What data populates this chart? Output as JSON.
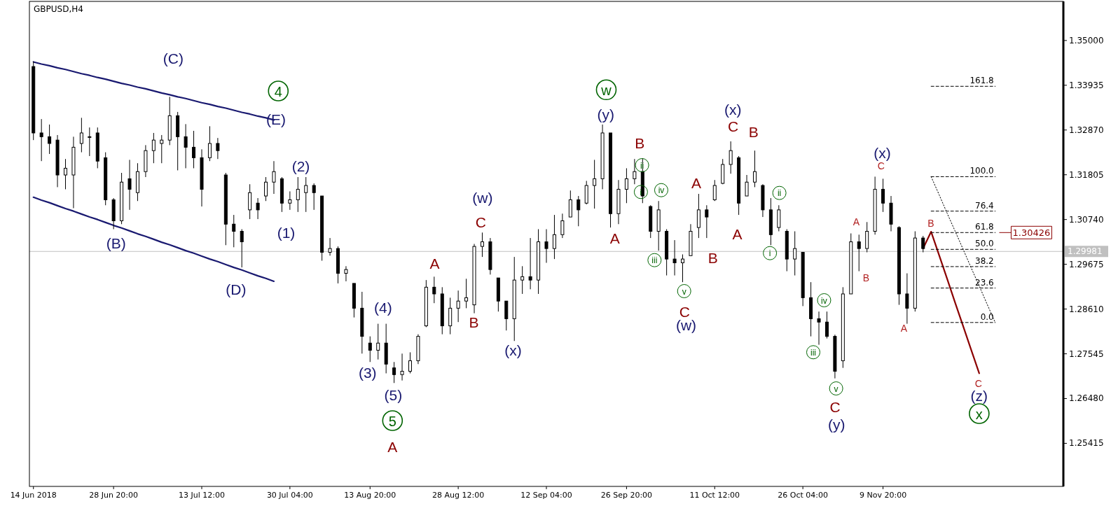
{
  "chart_data": {
    "type": "candlestick",
    "title": "GBPUSD,H4",
    "color": "#000000",
    "categories": [
      "14 Jun 2018",
      null,
      null,
      null,
      null,
      null,
      null,
      null,
      null,
      null,
      "28 Jun 20:00",
      null,
      null,
      null,
      null,
      null,
      null,
      null,
      null,
      null,
      null,
      "13 Jul 12:00",
      null,
      null,
      null,
      null,
      null,
      null,
      null,
      null,
      null,
      null,
      "30 Jul 04:00",
      null,
      null,
      null,
      null,
      null,
      null,
      null,
      null,
      null,
      "13 Aug 20:00",
      null,
      null,
      null,
      null,
      null,
      null,
      null,
      null,
      null,
      null,
      "28 Aug 12:00",
      null,
      null,
      null,
      null,
      null,
      null,
      null,
      null,
      null,
      null,
      "12 Sep 04:00",
      null,
      null,
      null,
      null,
      null,
      null,
      null,
      null,
      null,
      "26 Sep 20:00",
      null,
      null,
      null,
      null,
      null,
      null,
      null,
      null,
      null,
      null,
      "11 Oct 12:00",
      null,
      null,
      null,
      null,
      null,
      null,
      null,
      null,
      null,
      null,
      "26 Oct 04:00",
      null,
      null,
      null,
      null,
      null,
      null,
      null,
      null,
      null,
      "9 Nov 20:00",
      null,
      null,
      null,
      null,
      null,
      null,
      null,
      null,
      null,
      null,
      null,
      null,
      null,
      null,
      null,
      null,
      null,
      null,
      null,
      null,
      null,
      null
    ],
    "ohlc": [
      [
        1.3438,
        1.345,
        1.3263,
        1.328
      ],
      [
        1.328,
        1.3313,
        1.3213,
        1.3271
      ],
      [
        1.3271,
        1.33,
        1.323,
        1.3255
      ],
      [
        1.3263,
        1.3275,
        1.3151,
        1.318
      ],
      [
        1.318,
        1.3218,
        1.3146,
        1.3196
      ],
      [
        1.318,
        1.3271,
        1.3101,
        1.3246
      ],
      [
        1.3255,
        1.3316,
        1.3234,
        1.328
      ],
      [
        1.3271,
        1.3293,
        1.3225,
        1.3271
      ],
      [
        1.328,
        1.3293,
        1.3196,
        1.3213
      ],
      [
        1.3221,
        1.3234,
        1.3108,
        1.3121
      ],
      [
        1.3121,
        1.3125,
        1.3051,
        1.3071
      ],
      [
        1.3071,
        1.3185,
        1.3063,
        1.3163
      ],
      [
        1.3171,
        1.3216,
        1.3097,
        1.3146
      ],
      [
        1.3138,
        1.3208,
        1.3118,
        1.3188
      ],
      [
        1.3188,
        1.3251,
        1.3175,
        1.3238
      ],
      [
        1.3238,
        1.328,
        1.3208,
        1.3263
      ],
      [
        1.3255,
        1.3275,
        1.3208,
        1.3263
      ],
      [
        1.3263,
        1.3366,
        1.3251,
        1.3321
      ],
      [
        1.3321,
        1.333,
        1.3191,
        1.3271
      ],
      [
        1.3271,
        1.3301,
        1.3196,
        1.3246
      ],
      [
        1.3246,
        1.3285,
        1.3196,
        1.3221
      ],
      [
        1.3221,
        1.3241,
        1.3105,
        1.3146
      ],
      [
        1.3221,
        1.3296,
        1.3213,
        1.3255
      ],
      [
        1.3255,
        1.3268,
        1.3218,
        1.3238
      ],
      [
        1.318,
        1.3185,
        1.3013,
        1.3063
      ],
      [
        1.3063,
        1.3085,
        1.3008,
        1.3046
      ],
      [
        1.3046,
        1.3051,
        1.296,
        1.3021
      ],
      [
        1.3097,
        1.3158,
        1.3075,
        1.3138
      ],
      [
        1.3113,
        1.3125,
        1.3075,
        1.3097
      ],
      [
        1.313,
        1.3175,
        1.3118,
        1.3163
      ],
      [
        1.3163,
        1.3213,
        1.3135,
        1.3188
      ],
      [
        1.3171,
        1.3175,
        1.3092,
        1.3113
      ],
      [
        1.3113,
        1.3141,
        1.3097,
        1.3121
      ],
      [
        1.3121,
        1.3175,
        1.3092,
        1.3146
      ],
      [
        1.3138,
        1.3175,
        1.3092,
        1.3155
      ],
      [
        1.3155,
        1.316,
        1.3097,
        1.3138
      ],
      [
        1.313,
        1.313,
        1.2976,
        1.2996
      ],
      [
        1.2996,
        1.303,
        1.2988,
        1.3005
      ],
      [
        1.3005,
        1.301,
        1.2922,
        1.2946
      ],
      [
        1.2946,
        1.2963,
        1.2927,
        1.2955
      ],
      [
        1.2922,
        1.2922,
        1.2841,
        1.2863
      ],
      [
        1.2863,
        1.2902,
        1.2755,
        1.2796
      ],
      [
        1.278,
        1.2796,
        1.2735,
        1.2763
      ],
      [
        1.2763,
        1.2826,
        1.2741,
        1.278
      ],
      [
        1.278,
        1.2826,
        1.2708,
        1.273
      ],
      [
        1.2721,
        1.2735,
        1.2685,
        1.2705
      ],
      [
        1.2705,
        1.2755,
        1.2691,
        1.2713
      ],
      [
        1.2713,
        1.2758,
        1.2708,
        1.2738
      ],
      [
        1.2738,
        1.2801,
        1.273,
        1.2796
      ],
      [
        1.2821,
        1.293,
        1.2818,
        1.2913
      ],
      [
        1.2913,
        1.2938,
        1.2875,
        1.2897
      ],
      [
        1.2897,
        1.2913,
        1.2801,
        1.2821
      ],
      [
        1.2821,
        1.2888,
        1.2801,
        1.2863
      ],
      [
        1.2863,
        1.2905,
        1.283,
        1.288
      ],
      [
        1.288,
        1.2933,
        1.2863,
        1.2888
      ],
      [
        1.2871,
        1.3016,
        1.2851,
        1.301
      ],
      [
        1.301,
        1.3043,
        1.2985,
        1.3021
      ],
      [
        1.3021,
        1.303,
        1.2943,
        1.2955
      ],
      [
        1.2935,
        1.2935,
        1.2855,
        1.288
      ],
      [
        1.288,
        1.288,
        1.281,
        1.2838
      ],
      [
        1.2838,
        1.2985,
        1.2785,
        1.293
      ],
      [
        1.293,
        1.2963,
        1.2897,
        1.2938
      ],
      [
        1.2938,
        1.303,
        1.2908,
        1.293
      ],
      [
        1.293,
        1.3051,
        1.2897,
        1.3021
      ],
      [
        1.3021,
        1.3051,
        1.2971,
        1.3005
      ],
      [
        1.3005,
        1.3085,
        1.298,
        1.3038
      ],
      [
        1.3038,
        1.3088,
        1.303,
        1.3071
      ],
      [
        1.308,
        1.3143,
        1.308,
        1.3121
      ],
      [
        1.3121,
        1.313,
        1.3058,
        1.3097
      ],
      [
        1.3113,
        1.3166,
        1.311,
        1.3155
      ],
      [
        1.3155,
        1.3216,
        1.31,
        1.3171
      ],
      [
        1.3171,
        1.33,
        1.3146,
        1.328
      ],
      [
        1.328,
        1.328,
        1.3055,
        1.3088
      ],
      [
        1.3088,
        1.3168,
        1.3063,
        1.3146
      ],
      [
        1.3146,
        1.3196,
        1.3113,
        1.3171
      ],
      [
        1.3171,
        1.3218,
        1.3158,
        1.3188
      ],
      [
        1.3188,
        1.322,
        1.3113,
        1.313
      ],
      [
        1.3105,
        1.3108,
        1.303,
        1.3046
      ],
      [
        1.3046,
        1.3118,
        1.3,
        1.3097
      ],
      [
        1.3046,
        1.3051,
        1.2941,
        1.298
      ],
      [
        1.298,
        1.3025,
        1.2941,
        1.2971
      ],
      [
        1.2971,
        1.2991,
        1.2925,
        1.298
      ],
      [
        1.2988,
        1.3063,
        1.2988,
        1.3046
      ],
      [
        1.3055,
        1.3135,
        1.303,
        1.3097
      ],
      [
        1.3097,
        1.3108,
        1.303,
        1.308
      ],
      [
        1.3121,
        1.3168,
        1.3118,
        1.3155
      ],
      [
        1.316,
        1.3218,
        1.3158,
        1.3205
      ],
      [
        1.3205,
        1.326,
        1.3183,
        1.3238
      ],
      [
        1.3221,
        1.3225,
        1.3085,
        1.3113
      ],
      [
        1.313,
        1.318,
        1.313,
        1.3163
      ],
      [
        1.3163,
        1.3238,
        1.3151,
        1.3188
      ],
      [
        1.3155,
        1.3158,
        1.308,
        1.3097
      ],
      [
        1.3097,
        1.3125,
        1.3013,
        1.3038
      ],
      [
        1.3055,
        1.3108,
        1.3046,
        1.3097
      ],
      [
        1.3046,
        1.3051,
        1.2951,
        1.298
      ],
      [
        1.298,
        1.3046,
        1.2941,
        1.3005
      ],
      [
        1.2996,
        1.2996,
        1.2868,
        1.2888
      ],
      [
        1.2888,
        1.2925,
        1.2796,
        1.2838
      ],
      [
        1.2838,
        1.2855,
        1.2776,
        1.283
      ],
      [
        1.283,
        1.2855,
        1.2791,
        1.2796
      ],
      [
        1.2796,
        1.28,
        1.2696,
        1.2713
      ],
      [
        1.2738,
        1.2913,
        1.2721,
        1.2897
      ],
      [
        1.2897,
        1.3041,
        1.2897,
        1.3021
      ],
      [
        1.3021,
        1.3038,
        1.2951,
        1.3005
      ],
      [
        1.3005,
        1.3068,
        1.2996,
        1.3046
      ],
      [
        1.3046,
        1.3176,
        1.3038,
        1.3146
      ],
      [
        1.3146,
        1.3171,
        1.3092,
        1.3113
      ],
      [
        1.3113,
        1.313,
        1.3046,
        1.3063
      ],
      [
        1.3055,
        1.3058,
        1.2871,
        1.2897
      ],
      [
        1.2897,
        1.2946,
        1.2826,
        1.2863
      ],
      [
        1.2863,
        1.3046,
        1.2855,
        1.303
      ],
      [
        1.303,
        1.3035,
        1.2996,
        1.3005
      ],
      null,
      null,
      null,
      null,
      null,
      null,
      null,
      null,
      null,
      null,
      null,
      null,
      null,
      null,
      null,
      null,
      null
    ],
    "ylim": [
      1.2439,
      1.3593
    ],
    "yticks": [
      {
        "value": 1.35,
        "label": "1.35000"
      },
      1.33935,
      {
        "value": 1.3287,
        "label": "1.32870"
      },
      1.31805,
      {
        "value": 1.3074,
        "label": "1.30740"
      },
      1.29675,
      {
        "value": 1.2861,
        "label": "1.28610"
      },
      1.27545,
      {
        "value": 1.2648,
        "label": "1.26480"
      },
      1.25415
    ],
    "series": [
      {
        "type": "line",
        "color": "#191970",
        "line_style": "solid",
        "values": [
          1.3449,
          1.3444,
          1.344,
          1.3435,
          1.3431,
          1.3426,
          1.3421,
          1.3417,
          1.3412,
          1.3408,
          1.3403,
          1.3398,
          1.3394,
          1.3389,
          1.3385,
          1.338,
          1.3375,
          1.3371,
          1.3366,
          1.3362,
          1.3357,
          1.3352,
          1.3348,
          1.3343,
          1.3339,
          1.3334,
          1.3329,
          1.3325,
          1.332,
          1.3316,
          1.3311,
          null,
          null,
          null,
          null,
          null,
          null,
          null,
          null,
          null,
          null,
          null,
          null,
          null,
          null,
          null,
          null,
          null,
          null,
          null,
          null,
          null,
          null,
          null,
          null,
          null,
          null,
          null,
          null,
          null,
          null,
          null,
          null,
          null,
          null,
          null,
          null,
          null,
          null,
          null,
          null,
          null,
          null,
          null,
          null,
          null,
          null,
          null,
          null,
          null,
          null,
          null,
          null,
          null,
          null,
          null,
          null,
          null,
          null,
          null,
          null,
          null,
          null,
          null,
          null,
          null,
          null,
          null,
          null,
          null,
          null,
          null,
          null,
          null,
          null,
          null,
          null,
          null,
          null,
          null,
          null,
          null,
          null,
          null,
          null,
          null,
          null,
          null,
          null,
          null,
          null,
          null,
          null,
          null,
          null,
          null,
          null,
          null,
          null
        ]
      },
      {
        "type": "line",
        "color": "#191970",
        "line_style": "solid",
        "values": [
          1.3127,
          1.312,
          1.3114,
          1.3107,
          1.31,
          1.3094,
          1.3087,
          1.308,
          1.3074,
          1.3067,
          1.306,
          1.3054,
          1.3047,
          1.304,
          1.3034,
          1.3027,
          1.302,
          1.3014,
          1.3007,
          1.3,
          1.2994,
          1.2987,
          1.298,
          1.2974,
          1.2967,
          1.296,
          1.2954,
          1.2947,
          1.294,
          1.2934,
          1.2927,
          null,
          null,
          null,
          null,
          null,
          null,
          null,
          null,
          null,
          null,
          null,
          null,
          null,
          null,
          null,
          null,
          null,
          null,
          null,
          null,
          null,
          null,
          null,
          null,
          null,
          null,
          null,
          null,
          null,
          null,
          null,
          null,
          null,
          null,
          null,
          null,
          null,
          null,
          null,
          null,
          null,
          null,
          null,
          null,
          null,
          null,
          null,
          null,
          null,
          null,
          null,
          null,
          null,
          null,
          null,
          null,
          null,
          null,
          null,
          null,
          null,
          null,
          null,
          null,
          null,
          null,
          null,
          null,
          null,
          null,
          null,
          null,
          null,
          null,
          null,
          null,
          null,
          null,
          null,
          null,
          null,
          null,
          null,
          null,
          null,
          null,
          null,
          null,
          null,
          null,
          null,
          null,
          null,
          null,
          null,
          null,
          null,
          null
        ]
      },
      {
        "type": "line",
        "color": "#8b0000",
        "line_style": "solid",
        "values": [
          null,
          null,
          null,
          null,
          null,
          null,
          null,
          null,
          null,
          null,
          null,
          null,
          null,
          null,
          null,
          null,
          null,
          null,
          null,
          null,
          null,
          null,
          null,
          null,
          null,
          null,
          null,
          null,
          null,
          null,
          null,
          null,
          null,
          null,
          null,
          null,
          null,
          null,
          null,
          null,
          null,
          null,
          null,
          null,
          null,
          null,
          null,
          null,
          null,
          null,
          null,
          null,
          null,
          null,
          null,
          null,
          null,
          null,
          null,
          null,
          null,
          null,
          null,
          null,
          null,
          null,
          null,
          null,
          null,
          null,
          null,
          null,
          null,
          null,
          null,
          null,
          null,
          null,
          null,
          null,
          null,
          null,
          null,
          null,
          null,
          null,
          null,
          null,
          null,
          null,
          null,
          null,
          null,
          null,
          null,
          null,
          null,
          null,
          null,
          null,
          null,
          null,
          null,
          null,
          null,
          null,
          null,
          null,
          null,
          null,
          null,
          1.3005,
          1.3045,
          1.2989,
          1.2933,
          1.2876,
          1.282,
          1.2764,
          1.2708,
          null,
          null,
          null,
          null,
          null,
          null,
          null,
          null,
          null,
          null
        ]
      },
      {
        "type": "line",
        "color": "#000000",
        "line_style": "dotted",
        "values": [
          null,
          null,
          null,
          null,
          null,
          null,
          null,
          null,
          null,
          null,
          null,
          null,
          null,
          null,
          null,
          null,
          null,
          null,
          null,
          null,
          null,
          null,
          null,
          null,
          null,
          null,
          null,
          null,
          null,
          null,
          null,
          null,
          null,
          null,
          null,
          null,
          null,
          null,
          null,
          null,
          null,
          null,
          null,
          null,
          null,
          null,
          null,
          null,
          null,
          null,
          null,
          null,
          null,
          null,
          null,
          null,
          null,
          null,
          null,
          null,
          null,
          null,
          null,
          null,
          null,
          null,
          null,
          null,
          null,
          null,
          null,
          null,
          null,
          null,
          null,
          null,
          null,
          null,
          null,
          null,
          null,
          null,
          null,
          null,
          null,
          null,
          null,
          null,
          null,
          null,
          null,
          null,
          null,
          null,
          null,
          null,
          null,
          null,
          null,
          null,
          null,
          null,
          null,
          null,
          null,
          null,
          null,
          null,
          null,
          null,
          null,
          null,
          1.3176,
          1.3133,
          1.3089,
          1.3046,
          1.3003,
          1.2959,
          1.2916,
          1.2872,
          1.2829,
          null,
          null,
          null,
          null,
          null,
          null,
          null,
          null
        ]
      },
      {
        "type": "line",
        "name": "161.8",
        "color": "#000000",
        "line_style": "dashed",
        "values": [
          null,
          null,
          null,
          null,
          null,
          null,
          null,
          null,
          null,
          null,
          null,
          null,
          null,
          null,
          null,
          null,
          null,
          null,
          null,
          null,
          null,
          null,
          null,
          null,
          null,
          null,
          null,
          null,
          null,
          null,
          null,
          null,
          null,
          null,
          null,
          null,
          null,
          null,
          null,
          null,
          null,
          null,
          null,
          null,
          null,
          null,
          null,
          null,
          null,
          null,
          null,
          null,
          null,
          null,
          null,
          null,
          null,
          null,
          null,
          null,
          null,
          null,
          null,
          null,
          null,
          null,
          null,
          null,
          null,
          null,
          null,
          null,
          null,
          null,
          null,
          null,
          null,
          null,
          null,
          null,
          null,
          null,
          null,
          null,
          null,
          null,
          null,
          null,
          null,
          null,
          null,
          null,
          null,
          null,
          null,
          null,
          null,
          null,
          null,
          null,
          null,
          null,
          null,
          null,
          null,
          null,
          null,
          null,
          null,
          null,
          null,
          null,
          1.3391,
          1.3391,
          1.3391,
          1.3391,
          1.3391,
          1.3391,
          1.3391,
          1.3391,
          1.3391,
          null,
          null,
          null,
          null,
          null,
          null,
          null,
          null
        ]
      },
      {
        "type": "line",
        "name": "100.0",
        "color": "#000000",
        "line_style": "dashed",
        "values": [
          null,
          null,
          null,
          null,
          null,
          null,
          null,
          null,
          null,
          null,
          null,
          null,
          null,
          null,
          null,
          null,
          null,
          null,
          null,
          null,
          null,
          null,
          null,
          null,
          null,
          null,
          null,
          null,
          null,
          null,
          null,
          null,
          null,
          null,
          null,
          null,
          null,
          null,
          null,
          null,
          null,
          null,
          null,
          null,
          null,
          null,
          null,
          null,
          null,
          null,
          null,
          null,
          null,
          null,
          null,
          null,
          null,
          null,
          null,
          null,
          null,
          null,
          null,
          null,
          null,
          null,
          null,
          null,
          null,
          null,
          null,
          null,
          null,
          null,
          null,
          null,
          null,
          null,
          null,
          null,
          null,
          null,
          null,
          null,
          null,
          null,
          null,
          null,
          null,
          null,
          null,
          null,
          null,
          null,
          null,
          null,
          null,
          null,
          null,
          null,
          null,
          null,
          null,
          null,
          null,
          null,
          null,
          null,
          null,
          null,
          null,
          null,
          1.3176,
          1.3176,
          1.3176,
          1.3176,
          1.3176,
          1.3176,
          1.3176,
          1.3176,
          1.3176,
          null,
          null,
          null,
          null,
          null,
          null,
          null,
          null
        ]
      },
      {
        "type": "line",
        "name": "76.4",
        "color": "#000000",
        "line_style": "dashed",
        "values": [
          null,
          null,
          null,
          null,
          null,
          null,
          null,
          null,
          null,
          null,
          null,
          null,
          null,
          null,
          null,
          null,
          null,
          null,
          null,
          null,
          null,
          null,
          null,
          null,
          null,
          null,
          null,
          null,
          null,
          null,
          null,
          null,
          null,
          null,
          null,
          null,
          null,
          null,
          null,
          null,
          null,
          null,
          null,
          null,
          null,
          null,
          null,
          null,
          null,
          null,
          null,
          null,
          null,
          null,
          null,
          null,
          null,
          null,
          null,
          null,
          null,
          null,
          null,
          null,
          null,
          null,
          null,
          null,
          null,
          null,
          null,
          null,
          null,
          null,
          null,
          null,
          null,
          null,
          null,
          null,
          null,
          null,
          null,
          null,
          null,
          null,
          null,
          null,
          null,
          null,
          null,
          null,
          null,
          null,
          null,
          null,
          null,
          null,
          null,
          null,
          null,
          null,
          null,
          null,
          null,
          null,
          null,
          null,
          null,
          null,
          null,
          null,
          1.3094,
          1.3094,
          1.3094,
          1.3094,
          1.3094,
          1.3094,
          1.3094,
          1.3094,
          1.3094,
          null,
          null,
          null,
          null,
          null,
          null,
          null,
          null
        ]
      },
      {
        "type": "line",
        "name": "61.8",
        "color": "#000000",
        "line_style": "dashed",
        "values": [
          null,
          null,
          null,
          null,
          null,
          null,
          null,
          null,
          null,
          null,
          null,
          null,
          null,
          null,
          null,
          null,
          null,
          null,
          null,
          null,
          null,
          null,
          null,
          null,
          null,
          null,
          null,
          null,
          null,
          null,
          null,
          null,
          null,
          null,
          null,
          null,
          null,
          null,
          null,
          null,
          null,
          null,
          null,
          null,
          null,
          null,
          null,
          null,
          null,
          null,
          null,
          null,
          null,
          null,
          null,
          null,
          null,
          null,
          null,
          null,
          null,
          null,
          null,
          null,
          null,
          null,
          null,
          null,
          null,
          null,
          null,
          null,
          null,
          null,
          null,
          null,
          null,
          null,
          null,
          null,
          null,
          null,
          null,
          null,
          null,
          null,
          null,
          null,
          null,
          null,
          null,
          null,
          null,
          null,
          null,
          null,
          null,
          null,
          null,
          null,
          null,
          null,
          null,
          null,
          null,
          null,
          null,
          null,
          null,
          null,
          null,
          null,
          1.3043,
          1.3043,
          1.3043,
          1.3043,
          1.3043,
          1.3043,
          1.3043,
          1.3043,
          1.3043,
          null,
          null,
          null,
          null,
          null,
          null,
          null,
          null
        ]
      },
      {
        "type": "line",
        "name": "50.0",
        "color": "#000000",
        "line_style": "dashed",
        "values": [
          null,
          null,
          null,
          null,
          null,
          null,
          null,
          null,
          null,
          null,
          null,
          null,
          null,
          null,
          null,
          null,
          null,
          null,
          null,
          null,
          null,
          null,
          null,
          null,
          null,
          null,
          null,
          null,
          null,
          null,
          null,
          null,
          null,
          null,
          null,
          null,
          null,
          null,
          null,
          null,
          null,
          null,
          null,
          null,
          null,
          null,
          null,
          null,
          null,
          null,
          null,
          null,
          null,
          null,
          null,
          null,
          null,
          null,
          null,
          null,
          null,
          null,
          null,
          null,
          null,
          null,
          null,
          null,
          null,
          null,
          null,
          null,
          null,
          null,
          null,
          null,
          null,
          null,
          null,
          null,
          null,
          null,
          null,
          null,
          null,
          null,
          null,
          null,
          null,
          null,
          null,
          null,
          null,
          null,
          null,
          null,
          null,
          null,
          null,
          null,
          null,
          null,
          null,
          null,
          null,
          null,
          null,
          null,
          null,
          null,
          null,
          null,
          1.3003,
          1.3003,
          1.3003,
          1.3003,
          1.3003,
          1.3003,
          1.3003,
          1.3003,
          1.3003,
          null,
          null,
          null,
          null,
          null,
          null,
          null,
          null
        ]
      },
      {
        "type": "line",
        "name": "38.2",
        "color": "#000000",
        "line_style": "dashed",
        "values": [
          null,
          null,
          null,
          null,
          null,
          null,
          null,
          null,
          null,
          null,
          null,
          null,
          null,
          null,
          null,
          null,
          null,
          null,
          null,
          null,
          null,
          null,
          null,
          null,
          null,
          null,
          null,
          null,
          null,
          null,
          null,
          null,
          null,
          null,
          null,
          null,
          null,
          null,
          null,
          null,
          null,
          null,
          null,
          null,
          null,
          null,
          null,
          null,
          null,
          null,
          null,
          null,
          null,
          null,
          null,
          null,
          null,
          null,
          null,
          null,
          null,
          null,
          null,
          null,
          null,
          null,
          null,
          null,
          null,
          null,
          null,
          null,
          null,
          null,
          null,
          null,
          null,
          null,
          null,
          null,
          null,
          null,
          null,
          null,
          null,
          null,
          null,
          null,
          null,
          null,
          null,
          null,
          null,
          null,
          null,
          null,
          null,
          null,
          null,
          null,
          null,
          null,
          null,
          null,
          null,
          null,
          null,
          null,
          null,
          null,
          null,
          null,
          1.2962,
          1.2962,
          1.2962,
          1.2962,
          1.2962,
          1.2962,
          1.2962,
          1.2962,
          1.2962,
          null,
          null,
          null,
          null,
          null,
          null,
          null,
          null
        ]
      },
      {
        "type": "line",
        "name": "23.6",
        "color": "#000000",
        "line_style": "dashed",
        "values": [
          null,
          null,
          null,
          null,
          null,
          null,
          null,
          null,
          null,
          null,
          null,
          null,
          null,
          null,
          null,
          null,
          null,
          null,
          null,
          null,
          null,
          null,
          null,
          null,
          null,
          null,
          null,
          null,
          null,
          null,
          null,
          null,
          null,
          null,
          null,
          null,
          null,
          null,
          null,
          null,
          null,
          null,
          null,
          null,
          null,
          null,
          null,
          null,
          null,
          null,
          null,
          null,
          null,
          null,
          null,
          null,
          null,
          null,
          null,
          null,
          null,
          null,
          null,
          null,
          null,
          null,
          null,
          null,
          null,
          null,
          null,
          null,
          null,
          null,
          null,
          null,
          null,
          null,
          null,
          null,
          null,
          null,
          null,
          null,
          null,
          null,
          null,
          null,
          null,
          null,
          null,
          null,
          null,
          null,
          null,
          null,
          null,
          null,
          null,
          null,
          null,
          null,
          null,
          null,
          null,
          null,
          null,
          null,
          null,
          null,
          null,
          null,
          1.2911,
          1.2911,
          1.2911,
          1.2911,
          1.2911,
          1.2911,
          1.2911,
          1.2911,
          1.2911,
          null,
          null,
          null,
          null,
          null,
          null,
          null,
          null
        ]
      },
      {
        "type": "line",
        "name": "0.0",
        "color": "#000000",
        "line_style": "dashed",
        "values": [
          null,
          null,
          null,
          null,
          null,
          null,
          null,
          null,
          null,
          null,
          null,
          null,
          null,
          null,
          null,
          null,
          null,
          null,
          null,
          null,
          null,
          null,
          null,
          null,
          null,
          null,
          null,
          null,
          null,
          null,
          null,
          null,
          null,
          null,
          null,
          null,
          null,
          null,
          null,
          null,
          null,
          null,
          null,
          null,
          null,
          null,
          null,
          null,
          null,
          null,
          null,
          null,
          null,
          null,
          null,
          null,
          null,
          null,
          null,
          null,
          null,
          null,
          null,
          null,
          null,
          null,
          null,
          null,
          null,
          null,
          null,
          null,
          null,
          null,
          null,
          null,
          null,
          null,
          null,
          null,
          null,
          null,
          null,
          null,
          null,
          null,
          null,
          null,
          null,
          null,
          null,
          null,
          null,
          null,
          null,
          null,
          null,
          null,
          null,
          null,
          null,
          null,
          null,
          null,
          null,
          null,
          null,
          null,
          null,
          null,
          null,
          null,
          1.2829,
          1.2829,
          1.2829,
          1.2829,
          1.2829,
          1.2829,
          1.2829,
          1.2829,
          1.2829,
          null,
          null,
          null,
          null,
          null,
          null,
          null,
          null
        ]
      }
    ],
    "ref_lines": [
      {
        "axis": "y",
        "value": 1.29981,
        "label": "1.29981",
        "color": "#c0c0c0"
      }
    ],
    "annotations": [
      "(C)",
      "4",
      "(E)",
      "(2)",
      "(B)",
      "(1)",
      "(D)",
      "(w)",
      "C",
      "A",
      "(4)",
      "B",
      "(3)",
      "(x)",
      "(5)",
      "5",
      "A",
      "w",
      "(y)",
      "B",
      "ii",
      "i",
      "iv",
      "A",
      "iii",
      "v",
      "C",
      "(w)",
      "A",
      "B",
      "(x)",
      "C",
      "B",
      "A",
      "ii",
      "i",
      "iv",
      "iii",
      "v",
      "C",
      "(y)",
      "(x)",
      "C",
      "A",
      "B",
      "A",
      "B",
      "C",
      "(z)",
      "x",
      "1.30426"
    ]
  }
}
